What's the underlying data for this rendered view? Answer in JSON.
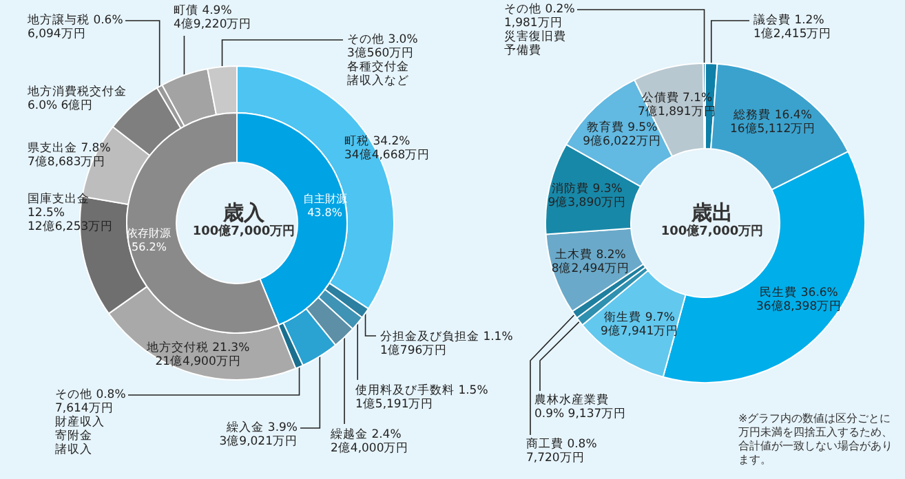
{
  "chart_data": [
    {
      "type": "donut",
      "title": "歳入",
      "subtitle": "100億7,000万円",
      "categories": [
        "自主財源",
        "依存財源"
      ],
      "values": [
        43.8,
        56.2
      ],
      "colors": [
        "#00a3e4",
        "#8a8a8a"
      ],
      "value_labels": [
        "\n43.8%",
        "\n56.2%"
      ]
    },
    {
      "type": "donut",
      "categories": [
        "町税",
        "分担金及び負担金",
        "使用料及び手数料",
        "繰越金",
        "繰入金",
        "その他",
        "地方交付税",
        "国庫支出金",
        "県支出金",
        "地方消費税交付金",
        "地方譲与税",
        "町債",
        "その他"
      ],
      "values": [
        34.2,
        1.1,
        1.5,
        2.4,
        3.9,
        0.8,
        21.3,
        12.5,
        7.8,
        6.0,
        0.6,
        4.9,
        3.0
      ],
      "colors": [
        "#4dc4f2",
        "#2b7fa0",
        "#3f93b5",
        "#5d8fa6",
        "#2aa2d2",
        "#1b6f8e",
        "#a9a9a9",
        "#6f6f6f",
        "#bdbdbd",
        "#7f7f7f",
        "#9a9a9a",
        "#a3a3a3",
        "#c9c9c9"
      ],
      "value_labels": [
        " 34.2%\n34億4,668万円",
        " 1.1%\n1億796万円",
        " 1.5%\n1億5,191万円",
        " 2.4%\n2億4,000万円",
        " 3.9%\n3億9,021万円",
        " 0.8%\n7,614万円",
        " 21.3%\n21億4,900万円",
        "\n12.5%\n12億6,253万円",
        " 7.8%\n7億8,683万円",
        "\n6.0% 6億円",
        " 0.6%\n6,094万円",
        " 4.9%\n4億9,220万円",
        " 3.0%\n3億560万円"
      ],
      "annotations": [
        "財産収入",
        "寄附金",
        "諸収入",
        "各種交付金",
        "諸収入など"
      ]
    },
    {
      "type": "donut",
      "title": "歳出",
      "subtitle": "100億7,000万円",
      "categories": [
        "議会費",
        "総務費",
        "民生費",
        "衛生費",
        "農林水産業費",
        "商工費",
        "土木費",
        "消防費",
        "教育費",
        "公債費",
        "その他"
      ],
      "values": [
        1.2,
        16.4,
        36.6,
        9.7,
        0.9,
        0.8,
        8.2,
        9.3,
        9.5,
        7.1,
        0.2
      ],
      "colors": [
        "#0f80a8",
        "#3ba2cd",
        "#00aeea",
        "#62c8ee",
        "#2f90b0",
        "#1f7f9f",
        "#6aa9c9",
        "#1888a8",
        "#62b9e1",
        "#b8c8d0",
        "#106fa0"
      ],
      "value_labels": [
        " 1.2%\n1億2,415万円",
        " 16.4%\n16億5,112万円",
        " 36.6%\n36億8,398万円",
        " 9.7%\n9億7,941万円",
        "\n0.9% 9,137万円",
        " 0.8%\n7,720万円",
        " 8.2%\n8億2,494万円",
        " 9.3%\n9億3,890万円",
        " 9.5%\n9億6,022万円",
        " 7.1%\n7億1,891万円",
        " 0.2%\n1,981万円"
      ],
      "annotations": [
        "災害復旧費",
        "予備費",
        "※グラフ内の数値は区分ごとに万円未満を四捨五入するため、合計値が一致しない場合があります。"
      ]
    }
  ]
}
